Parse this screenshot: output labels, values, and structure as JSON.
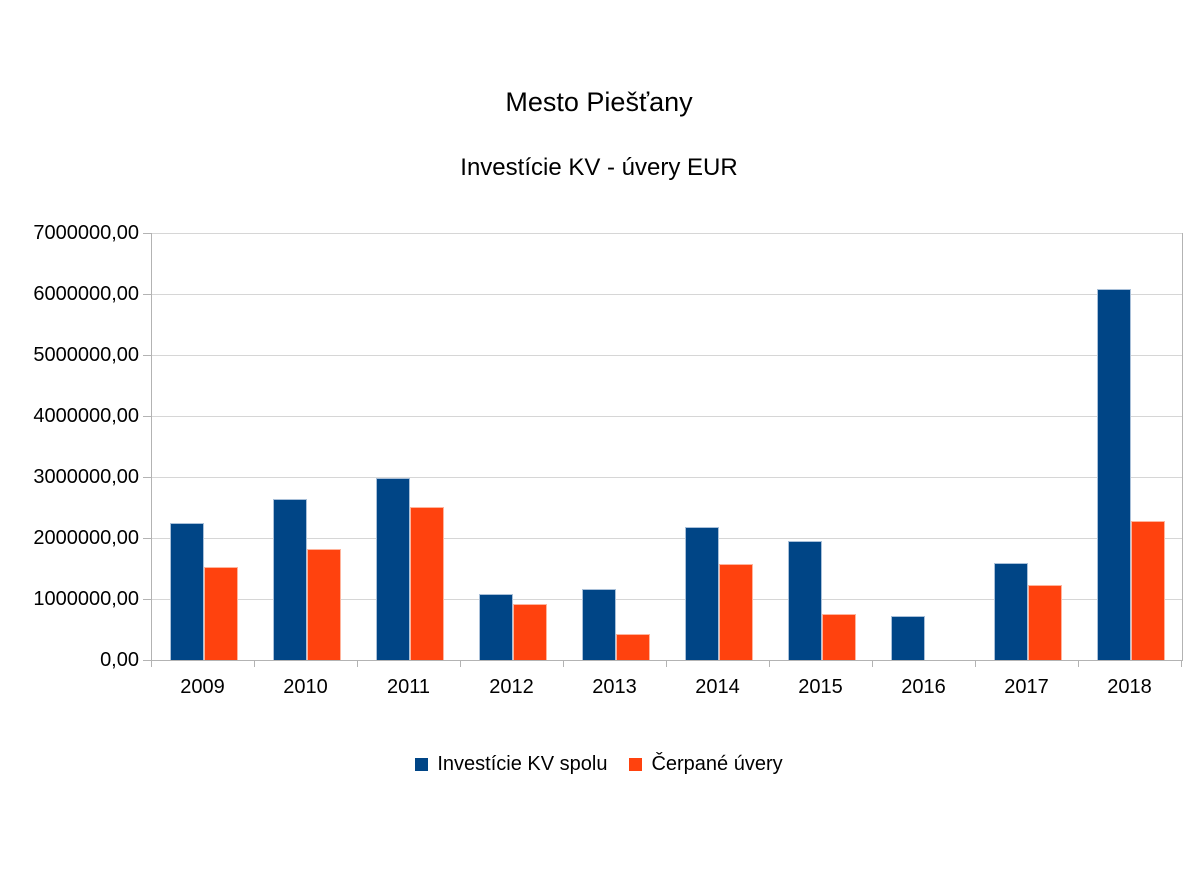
{
  "chart_data": {
    "type": "bar",
    "title": "Mesto Piešťany",
    "subtitle": "Investície KV - úvery EUR",
    "categories": [
      "2009",
      "2010",
      "2011",
      "2012",
      "2013",
      "2014",
      "2015",
      "2016",
      "2017",
      "2018"
    ],
    "series": [
      {
        "name": "Investície KV spolu",
        "color": "#004586",
        "values": [
          2240000,
          2640000,
          2980000,
          1090000,
          1170000,
          2180000,
          1950000,
          720000,
          1590000,
          6090000
        ]
      },
      {
        "name": "Čerpané úvery",
        "color": "#FF420E",
        "values": [
          1530000,
          1820000,
          2500000,
          910000,
          430000,
          1570000,
          760000,
          0,
          1230000,
          2280000
        ]
      }
    ],
    "xlabel": "",
    "ylabel": "",
    "ylim": [
      0,
      7000000
    ],
    "y_tick_step": 1000000,
    "y_tick_labels": [
      "7000000,00",
      "6000000,00",
      "5000000,00",
      "4000000,00",
      "3000000,00",
      "2000000,00",
      "1000000,00",
      "0,00"
    ],
    "grid": "horizontal-on",
    "legend_position": "bottom",
    "colors": {
      "gridline": "#d6d6d6",
      "axis": "#b3b3b3",
      "text": "#000000",
      "background": "#ffffff"
    }
  }
}
